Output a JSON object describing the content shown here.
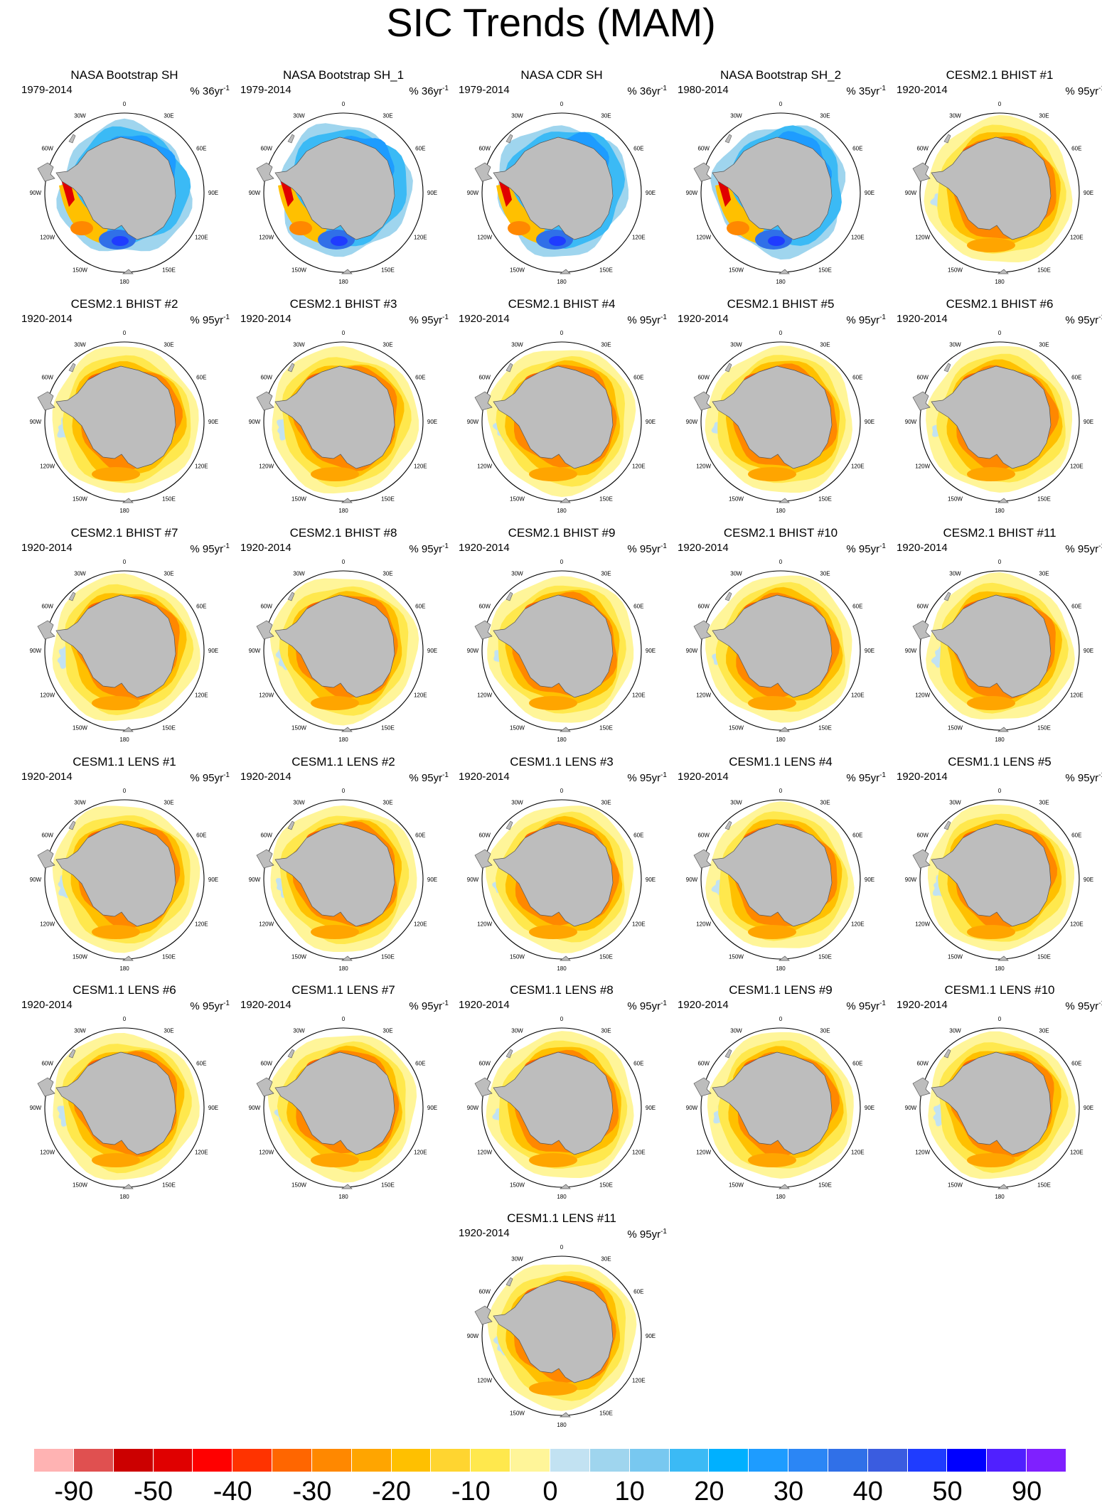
{
  "title": "SIC Trends (MAM)",
  "map_labels": {
    "deg0": "0",
    "deg30w": "30W",
    "deg30e": "30E",
    "deg60w": "60W",
    "deg60e": "60E",
    "deg90w": "90W",
    "deg90e": "90E",
    "deg120w": "120W",
    "deg120e": "120E",
    "deg150w": "150W",
    "deg150e": "150E",
    "deg180": "180"
  },
  "units_prefix": "% ",
  "units_suffix": "yr",
  "units_exp": "-1",
  "panels": [
    {
      "title": "NASA Bootstrap SH",
      "years": "1979-2014",
      "scale": "36",
      "pattern": "obs"
    },
    {
      "title": "NASA Bootstrap SH_1",
      "years": "1979-2014",
      "scale": "36",
      "pattern": "obs"
    },
    {
      "title": "NASA CDR SH",
      "years": "1979-2014",
      "scale": "36",
      "pattern": "obs"
    },
    {
      "title": "NASA Bootstrap SH_2",
      "years": "1980-2014",
      "scale": "35",
      "pattern": "obs"
    },
    {
      "title": "CESM2.1 BHIST #1",
      "years": "1920-2014",
      "scale": "95",
      "pattern": "model"
    },
    {
      "title": "CESM2.1 BHIST #2",
      "years": "1920-2014",
      "scale": "95",
      "pattern": "model"
    },
    {
      "title": "CESM2.1 BHIST #3",
      "years": "1920-2014",
      "scale": "95",
      "pattern": "model"
    },
    {
      "title": "CESM2.1 BHIST #4",
      "years": "1920-2014",
      "scale": "95",
      "pattern": "model"
    },
    {
      "title": "CESM2.1 BHIST #5",
      "years": "1920-2014",
      "scale": "95",
      "pattern": "model"
    },
    {
      "title": "CESM2.1 BHIST #6",
      "years": "1920-2014",
      "scale": "95",
      "pattern": "model"
    },
    {
      "title": "CESM2.1 BHIST #7",
      "years": "1920-2014",
      "scale": "95",
      "pattern": "model"
    },
    {
      "title": "CESM2.1 BHIST #8",
      "years": "1920-2014",
      "scale": "95",
      "pattern": "model"
    },
    {
      "title": "CESM2.1 BHIST #9",
      "years": "1920-2014",
      "scale": "95",
      "pattern": "model"
    },
    {
      "title": "CESM2.1 BHIST #10",
      "years": "1920-2014",
      "scale": "95",
      "pattern": "model"
    },
    {
      "title": "CESM2.1 BHIST #11",
      "years": "1920-2014",
      "scale": "95",
      "pattern": "model"
    },
    {
      "title": "CESM1.1 LENS #1",
      "years": "1920-2014",
      "scale": "95",
      "pattern": "model"
    },
    {
      "title": "CESM1.1 LENS #2",
      "years": "1920-2014",
      "scale": "95",
      "pattern": "model"
    },
    {
      "title": "CESM1.1 LENS #3",
      "years": "1920-2014",
      "scale": "95",
      "pattern": "model"
    },
    {
      "title": "CESM1.1 LENS #4",
      "years": "1920-2014",
      "scale": "95",
      "pattern": "model"
    },
    {
      "title": "CESM1.1 LENS #5",
      "years": "1920-2014",
      "scale": "95",
      "pattern": "model"
    },
    {
      "title": "CESM1.1 LENS #6",
      "years": "1920-2014",
      "scale": "95",
      "pattern": "model"
    },
    {
      "title": "CESM1.1 LENS #7",
      "years": "1920-2014",
      "scale": "95",
      "pattern": "model"
    },
    {
      "title": "CESM1.1 LENS #8",
      "years": "1920-2014",
      "scale": "95",
      "pattern": "model"
    },
    {
      "title": "CESM1.1 LENS #9",
      "years": "1920-2014",
      "scale": "95",
      "pattern": "model"
    },
    {
      "title": "CESM1.1 LENS #10",
      "years": "1920-2014",
      "scale": "95",
      "pattern": "model"
    },
    {
      "title": "CESM1.1 LENS #11",
      "years": "1920-2014",
      "scale": "95",
      "pattern": "model"
    }
  ],
  "colorbar": {
    "colors": [
      "#ffb3b3",
      "#e05050",
      "#cc0000",
      "#e00000",
      "#ff0000",
      "#ff3300",
      "#ff6600",
      "#ff8800",
      "#ffa500",
      "#ffc000",
      "#ffd530",
      "#ffe84d",
      "#fff599",
      "#c2e2f2",
      "#9fd5ee",
      "#78c8f0",
      "#3bbaf5",
      "#00b0ff",
      "#1e9cff",
      "#2b86f5",
      "#3070e8",
      "#3a5ce0",
      "#1f3cff",
      "#0000ff",
      "#5020ff",
      "#7f20ff"
    ],
    "labels": [
      "-90",
      "-50",
      "-40",
      "-30",
      "-20",
      "-10",
      "0",
      "10",
      "20",
      "30",
      "40",
      "50",
      "90"
    ]
  }
}
